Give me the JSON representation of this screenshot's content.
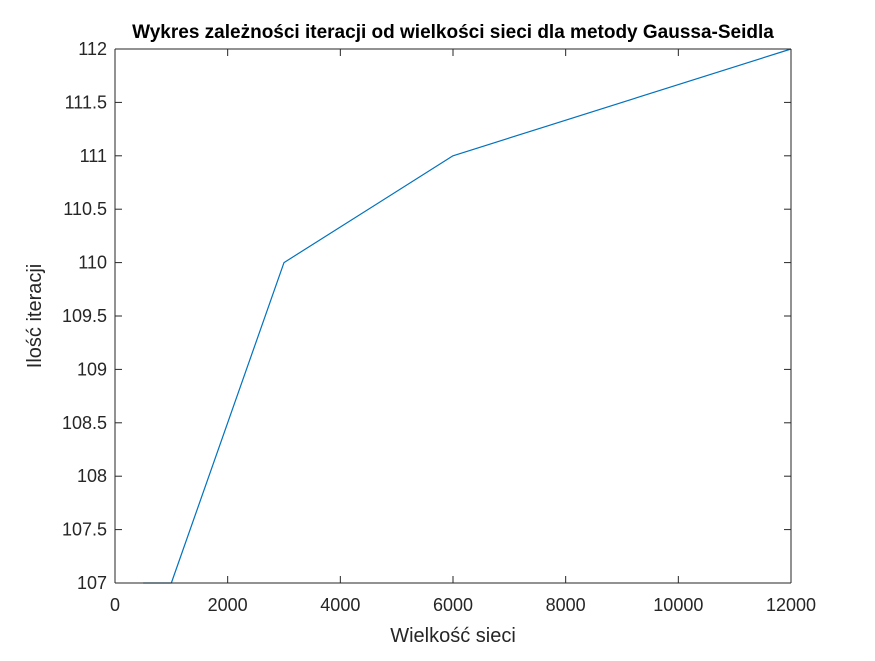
{
  "chart_data": {
    "type": "line",
    "title": "Wykres zależności iteracji od wielkości sieci dla metody Gaussa-Seidla",
    "xlabel": "Wielkość sieci",
    "ylabel": "Ilość iteracji",
    "xlim": [
      0,
      12000
    ],
    "ylim": [
      107,
      112
    ],
    "xticks": [
      0,
      2000,
      4000,
      6000,
      8000,
      10000,
      12000
    ],
    "xtick_labels": [
      "0",
      "2000",
      "4000",
      "6000",
      "8000",
      "10000",
      "12000"
    ],
    "yticks": [
      107,
      107.5,
      108,
      108.5,
      109,
      109.5,
      110,
      110.5,
      111,
      111.5,
      112
    ],
    "ytick_labels": [
      "107",
      "107.5",
      "108",
      "108.5",
      "109",
      "109.5",
      "110",
      "110.5",
      "111",
      "111.5",
      "112"
    ],
    "grid": false,
    "series": [
      {
        "x": [
          500,
          1000,
          3000,
          6000,
          12000
        ],
        "y": [
          107,
          107,
          110,
          111,
          112
        ],
        "color": "#0072BD"
      }
    ]
  }
}
